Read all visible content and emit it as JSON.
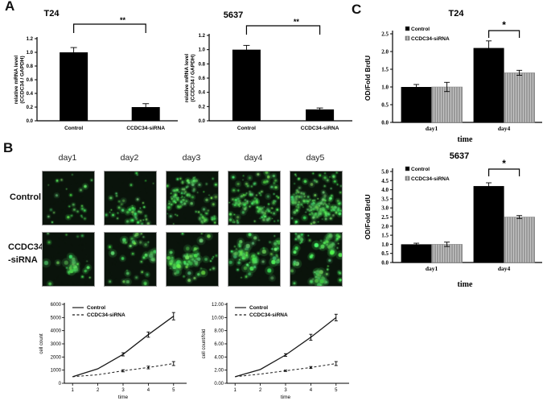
{
  "panels": {
    "A": {
      "label": "A"
    },
    "B": {
      "label": "B",
      "col_headers": [
        "day1",
        "day2",
        "day3",
        "day4",
        "day5"
      ],
      "rows": [
        {
          "name": "Control",
          "label_lines": [
            "Control"
          ],
          "densities": [
            26,
            55,
            110,
            150,
            175
          ],
          "dot_scale": 1.0
        },
        {
          "name": "CCDC34-siRNA",
          "label_lines": [
            "CCDC34",
            "-siRNA"
          ],
          "densities": [
            34,
            48,
            62,
            78,
            95
          ],
          "dot_scale": 1.35
        }
      ]
    },
    "C": {
      "label": "C"
    }
  },
  "colors": {
    "background": "#ffffff",
    "bar_black": "#000000",
    "bar_gray": "#c4c4c4",
    "bar_gray_hatch": "#6e6e6e",
    "axis": "#000000",
    "micro_bg": "#0a130b",
    "micro_green": "#4ee06a"
  },
  "chart_data": [
    {
      "id": "a_t24",
      "type": "bar",
      "title": "T24",
      "ylabel_lines": [
        "relative mRNA level",
        "(CCDC34 / GAPDH)"
      ],
      "categories": [
        "Control",
        "CCDC34-siRNA"
      ],
      "values": [
        1.0,
        0.2
      ],
      "errors": [
        0.07,
        0.05
      ],
      "ylim": [
        0,
        1.2
      ],
      "ytick_step": 0.2,
      "ytick_format": "1dp",
      "significance": {
        "label": "**"
      },
      "bar_color": "#000000",
      "grid": false
    },
    {
      "id": "a_5637",
      "type": "bar",
      "title": "5637",
      "ylabel_lines": [
        "relative mRNA level",
        "(CCDC34 / GAPDH)"
      ],
      "categories": [
        "Control",
        "CCDC34-siRNA"
      ],
      "values": [
        1.0,
        0.16
      ],
      "errors": [
        0.06,
        0.02
      ],
      "ylim": [
        0,
        1.2
      ],
      "ytick_step": 0.2,
      "ytick_format": "1dp",
      "significance": {
        "label": "**"
      },
      "bar_color": "#000000",
      "grid": false
    },
    {
      "id": "c_t24",
      "type": "grouped_bar",
      "title": "T24",
      "ylabel": "OD/Fold BrdU",
      "xlabel": "time",
      "categories": [
        "day1",
        "day4"
      ],
      "series": [
        {
          "name": "Control",
          "color": "#000000",
          "hatch": false,
          "values": [
            1.0,
            2.1
          ],
          "errors": [
            0.07,
            0.2
          ]
        },
        {
          "name": "CCDC34-siRNA",
          "color": "#c4c4c4",
          "hatch": true,
          "values": [
            1.0,
            1.4
          ],
          "errors": [
            0.13,
            0.07
          ]
        }
      ],
      "ylim": [
        0,
        2.5
      ],
      "ytick_step": 0.5,
      "ytick_format": "1dp",
      "significance": {
        "label": "*",
        "group_index": 1
      },
      "legend_position": "top-left",
      "grid": false
    },
    {
      "id": "c_5637",
      "type": "grouped_bar",
      "title": "5637",
      "ylabel": "OD/Fold BrdU",
      "xlabel": "time",
      "categories": [
        "day1",
        "day4"
      ],
      "series": [
        {
          "name": "Control",
          "color": "#000000",
          "hatch": false,
          "values": [
            1.0,
            4.2
          ],
          "errors": [
            0.06,
            0.18
          ]
        },
        {
          "name": "CCDC34-siRNA",
          "color": "#c4c4c4",
          "hatch": true,
          "values": [
            1.0,
            2.5
          ],
          "errors": [
            0.12,
            0.08
          ]
        }
      ],
      "ylim": [
        0,
        5.0
      ],
      "ytick_step": 0.5,
      "ytick_format": "1dp",
      "significance": {
        "label": "*",
        "group_index": 1
      },
      "legend_position": "top-left",
      "grid": false
    },
    {
      "id": "b_line_count",
      "type": "line",
      "title": "",
      "ylabel": "cell count",
      "xlabel": "time",
      "x": [
        1,
        2,
        3,
        4,
        5
      ],
      "series": [
        {
          "name": "Control",
          "style": "solid",
          "values": [
            500,
            1100,
            2200,
            3700,
            5100
          ],
          "errors": [
            0,
            0,
            120,
            200,
            280
          ]
        },
        {
          "name": "CCDC34-siRNA",
          "style": "dashed",
          "values": [
            500,
            650,
            950,
            1200,
            1500
          ],
          "errors": [
            0,
            0,
            80,
            100,
            150
          ]
        }
      ],
      "ylim": [
        0,
        6000
      ],
      "ytick_step": 1000,
      "ytick_format": "int",
      "legend_position": "top-left",
      "grid": false
    },
    {
      "id": "b_line_fold",
      "type": "line",
      "title": "",
      "ylabel": "cell count/fold",
      "xlabel": "time",
      "x": [
        1,
        2,
        3,
        4,
        5
      ],
      "series": [
        {
          "name": "Control",
          "style": "solid",
          "values": [
            1.0,
            2.1,
            4.3,
            7.0,
            10.0
          ],
          "errors": [
            0,
            0,
            0.2,
            0.45,
            0.5
          ]
        },
        {
          "name": "CCDC34-siRNA",
          "style": "dashed",
          "values": [
            1.0,
            1.4,
            1.9,
            2.4,
            3.0
          ],
          "errors": [
            0,
            0,
            0.1,
            0.15,
            0.3
          ]
        }
      ],
      "ylim": [
        0,
        12
      ],
      "ytick_step": 2,
      "ytick_format": "2dp",
      "legend_position": "top-left",
      "grid": false
    }
  ]
}
